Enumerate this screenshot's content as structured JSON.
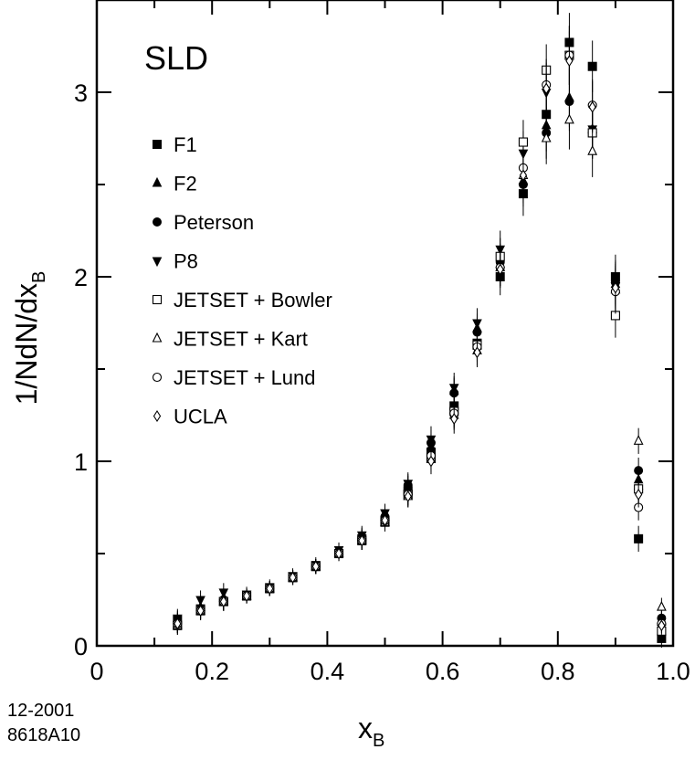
{
  "chart_data": {
    "type": "scatter",
    "title": "SLD",
    "xlabel": "x",
    "xlabel_sub": "B",
    "ylabel": "1/NdN/dx",
    "ylabel_sub": "B",
    "xlim": [
      0,
      1.0
    ],
    "ylim": [
      0,
      3.5
    ],
    "xticks": [
      0,
      0.2,
      0.4,
      0.6,
      0.8,
      1.0
    ],
    "xtick_labels": [
      "0",
      "0.2",
      "0.4",
      "0.6",
      "0.8",
      "1.0"
    ],
    "yticks": [
      0,
      1,
      2,
      3
    ],
    "ytick_labels": [
      "0",
      "1",
      "2",
      "3"
    ],
    "x": [
      0.14,
      0.18,
      0.22,
      0.26,
      0.3,
      0.34,
      0.38,
      0.42,
      0.46,
      0.5,
      0.54,
      0.58,
      0.62,
      0.66,
      0.7,
      0.74,
      0.78,
      0.82,
      0.86,
      0.9,
      0.94,
      0.98
    ],
    "series": [
      {
        "name": "F1",
        "marker": "square-filled",
        "errors": [
          0.05,
          0.05,
          0.05,
          0.04,
          0.04,
          0.04,
          0.04,
          0.04,
          0.05,
          0.05,
          0.06,
          0.07,
          0.08,
          0.08,
          0.1,
          0.12,
          0.14,
          0.16,
          0.14,
          0.12,
          0.07,
          0.05
        ],
        "values": [
          0.14,
          0.2,
          0.24,
          0.27,
          0.31,
          0.37,
          0.43,
          0.5,
          0.58,
          0.68,
          0.84,
          1.05,
          1.3,
          1.64,
          2.0,
          2.45,
          2.88,
          3.27,
          3.14,
          2.0,
          0.58,
          0.04
        ]
      },
      {
        "name": "F2",
        "marker": "triangle-up-filled",
        "errors": [
          0.05,
          0.05,
          0.05,
          0.04,
          0.04,
          0.04,
          0.04,
          0.04,
          0.05,
          0.05,
          0.06,
          0.07,
          0.08,
          0.08,
          0.1,
          0.12,
          0.14,
          0.16,
          0.14,
          0.12,
          0.07,
          0.05
        ],
        "values": [
          0.12,
          0.21,
          0.26,
          0.27,
          0.31,
          0.37,
          0.43,
          0.51,
          0.59,
          0.7,
          0.86,
          1.08,
          1.38,
          1.72,
          2.07,
          2.52,
          2.82,
          2.97,
          2.8,
          1.96,
          0.9,
          0.13
        ]
      },
      {
        "name": "Peterson",
        "marker": "circle-filled",
        "errors": [
          0.05,
          0.05,
          0.05,
          0.04,
          0.04,
          0.04,
          0.04,
          0.04,
          0.05,
          0.05,
          0.06,
          0.07,
          0.08,
          0.08,
          0.1,
          0.12,
          0.14,
          0.16,
          0.14,
          0.12,
          0.07,
          0.05
        ],
        "values": [
          0.13,
          0.2,
          0.25,
          0.27,
          0.31,
          0.37,
          0.43,
          0.5,
          0.58,
          0.7,
          0.87,
          1.1,
          1.37,
          1.7,
          2.08,
          2.5,
          2.78,
          2.95,
          2.78,
          1.97,
          0.95,
          0.15
        ]
      },
      {
        "name": "P8",
        "marker": "triangle-down-filled",
        "errors": [
          0.05,
          0.05,
          0.05,
          0.04,
          0.04,
          0.04,
          0.04,
          0.04,
          0.05,
          0.05,
          0.06,
          0.07,
          0.08,
          0.08,
          0.1,
          0.12,
          0.14,
          0.16,
          0.14,
          0.12,
          0.07,
          0.05
        ],
        "values": [
          0.15,
          0.25,
          0.29,
          0.28,
          0.32,
          0.38,
          0.44,
          0.52,
          0.6,
          0.72,
          0.88,
          1.12,
          1.4,
          1.75,
          2.15,
          2.67,
          3.0,
          3.2,
          2.8,
          1.95,
          0.83,
          0.1
        ]
      },
      {
        "name": "JETSET + Bowler",
        "marker": "square-open",
        "errors": [
          0.05,
          0.05,
          0.05,
          0.04,
          0.04,
          0.04,
          0.04,
          0.04,
          0.05,
          0.05,
          0.06,
          0.07,
          0.08,
          0.08,
          0.1,
          0.12,
          0.14,
          0.16,
          0.14,
          0.12,
          0.07,
          0.05
        ],
        "values": [
          0.11,
          0.19,
          0.24,
          0.27,
          0.31,
          0.37,
          0.43,
          0.5,
          0.57,
          0.67,
          0.82,
          1.02,
          1.27,
          1.63,
          2.11,
          2.73,
          3.12,
          3.2,
          2.78,
          1.79,
          0.85,
          0.08
        ]
      },
      {
        "name": "JETSET + Kart",
        "marker": "triangle-up-open",
        "errors": [
          0.05,
          0.05,
          0.05,
          0.04,
          0.04,
          0.04,
          0.04,
          0.04,
          0.05,
          0.05,
          0.06,
          0.07,
          0.08,
          0.08,
          0.1,
          0.12,
          0.14,
          0.16,
          0.14,
          0.12,
          0.07,
          0.05
        ],
        "values": [
          0.11,
          0.19,
          0.24,
          0.27,
          0.31,
          0.37,
          0.43,
          0.5,
          0.57,
          0.67,
          0.81,
          1.01,
          1.25,
          1.6,
          2.05,
          2.55,
          2.75,
          2.85,
          2.68,
          1.93,
          1.11,
          0.21
        ]
      },
      {
        "name": "JETSET + Lund",
        "marker": "circle-open",
        "errors": [
          0.05,
          0.05,
          0.05,
          0.04,
          0.04,
          0.04,
          0.04,
          0.04,
          0.05,
          0.05,
          0.06,
          0.07,
          0.08,
          0.08,
          0.1,
          0.12,
          0.14,
          0.16,
          0.14,
          0.12,
          0.07,
          0.05
        ],
        "values": [
          0.12,
          0.19,
          0.24,
          0.27,
          0.31,
          0.37,
          0.43,
          0.5,
          0.57,
          0.68,
          0.82,
          1.03,
          1.26,
          1.62,
          2.05,
          2.59,
          3.04,
          3.2,
          2.93,
          1.92,
          0.75,
          0.12
        ]
      },
      {
        "name": "UCLA",
        "marker": "diamond-open",
        "errors": [
          0.05,
          0.05,
          0.05,
          0.04,
          0.04,
          0.04,
          0.04,
          0.04,
          0.05,
          0.05,
          0.06,
          0.07,
          0.08,
          0.08,
          0.1,
          0.12,
          0.14,
          0.16,
          0.14,
          0.12,
          0.07,
          0.05
        ],
        "values": [
          0.12,
          0.19,
          0.24,
          0.27,
          0.31,
          0.37,
          0.43,
          0.5,
          0.57,
          0.68,
          0.81,
          1.0,
          1.23,
          1.59,
          2.04,
          2.55,
          3.02,
          3.17,
          2.92,
          1.94,
          0.82,
          0.11
        ]
      }
    ],
    "legend_position": "left"
  },
  "footer": {
    "date": "12-2001",
    "code": "8618A10"
  }
}
